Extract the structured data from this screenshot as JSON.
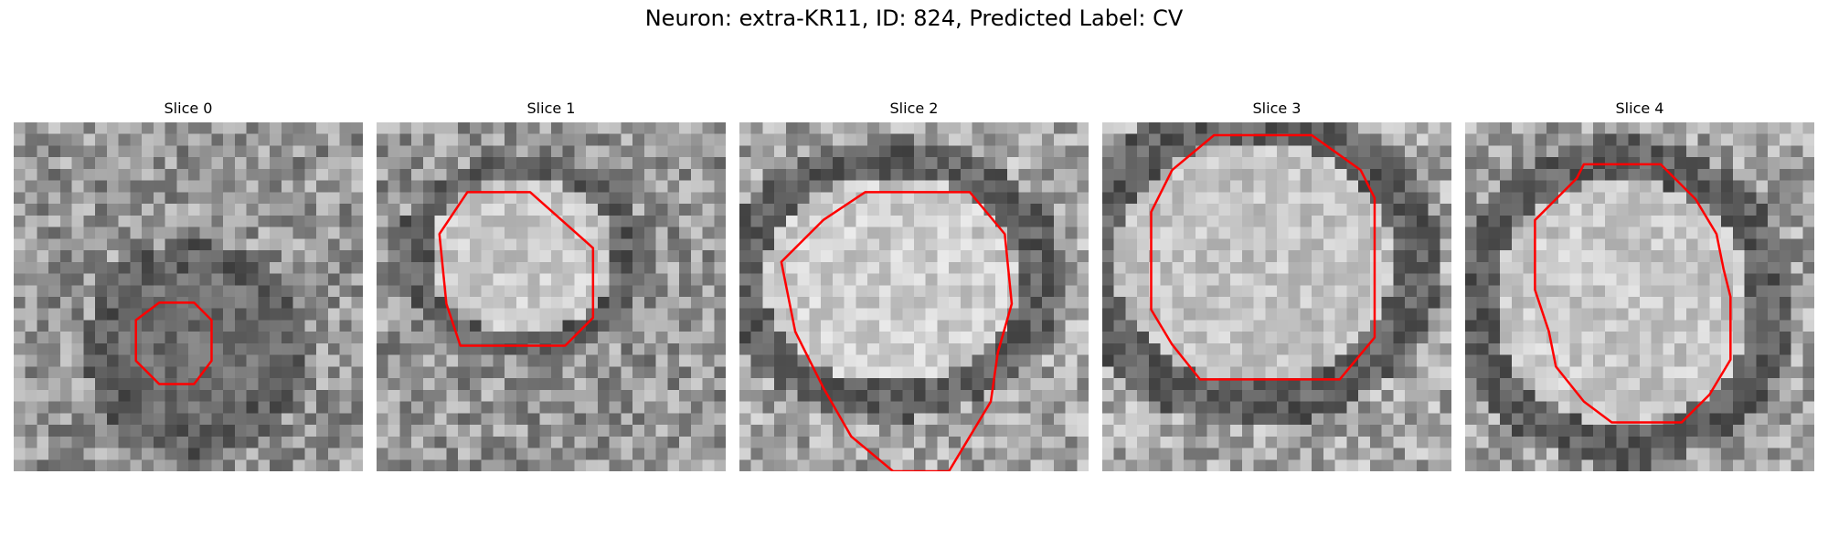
{
  "figure": {
    "title": "Neuron: extra-KR11, ID: 824, Predicted Label: CV"
  },
  "panels": [
    {
      "title": "Slice 0"
    },
    {
      "title": "Slice 1"
    },
    {
      "title": "Slice 2"
    },
    {
      "title": "Slice 3"
    },
    {
      "title": "Slice 4"
    }
  ],
  "colors": {
    "contour": "#ff0000",
    "background": "#ffffff"
  }
}
